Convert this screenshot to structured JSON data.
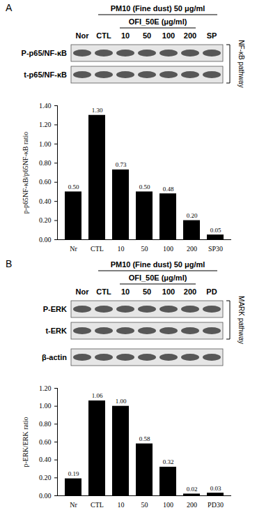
{
  "chart_data": [
    {
      "type": "bar",
      "panel": "A",
      "categories": [
        "Nr",
        "CTL",
        "10",
        "50",
        "100",
        "200",
        "SP30"
      ],
      "values": [
        0.5,
        1.3,
        0.73,
        0.5,
        0.48,
        0.2,
        0.05
      ],
      "value_labels": [
        "0.50",
        "1.30",
        "0.73",
        "0.50",
        "0.48",
        "0.20",
        "0.05"
      ],
      "data_labels": true,
      "color": "#000000",
      "y_label": "p-p65NF-κB/p65NF-κB ratio",
      "ylim": [
        0,
        1.4
      ],
      "yticks": [
        {
          "value": 0,
          "label": "0.00"
        },
        {
          "value": 0.2,
          "label": "0.20"
        },
        {
          "value": 0.4,
          "label": "0.40"
        },
        {
          "value": 0.6,
          "label": "0.60"
        },
        {
          "value": 0.8,
          "label": "0.80"
        },
        {
          "value": 1.0,
          "label": "1.00"
        },
        {
          "value": 1.2,
          "label": "1.20"
        },
        {
          "value": 1.4,
          "label": "1.40"
        }
      ],
      "grid": false,
      "blot": {
        "treatment": "PM10 (Fine dust) 50 μg/ml",
        "extract": "OFI_50E (μg/ml)",
        "lanes": [
          "Nor",
          "CTL",
          "10",
          "50",
          "100",
          "200",
          "SP"
        ],
        "pathway_rows": [
          "P-p65/NF-κB",
          "t-p65/NF-κB"
        ],
        "other_rows": [],
        "pathway": "NF-κB pathway"
      }
    },
    {
      "type": "bar",
      "panel": "B",
      "categories": [
        "Nr",
        "CTL",
        "10",
        "50",
        "100",
        "200",
        "PD30"
      ],
      "values": [
        0.19,
        1.06,
        1.0,
        0.58,
        0.32,
        0.02,
        0.03
      ],
      "value_labels": [
        "0.19",
        "1.06",
        "1.00",
        "0.58",
        "0.32",
        "0.02",
        "0.03"
      ],
      "data_labels": true,
      "color": "#000000",
      "y_label": "p-ERK/ERK ratio",
      "ylim": [
        0,
        1.2
      ],
      "yticks": [
        {
          "value": 0,
          "label": "0.00"
        },
        {
          "value": 0.2,
          "label": "0.20"
        },
        {
          "value": 0.4,
          "label": "0.40"
        },
        {
          "value": 0.6,
          "label": "0.60"
        },
        {
          "value": 0.8,
          "label": "0.80"
        },
        {
          "value": 1.0,
          "label": "1.00"
        },
        {
          "value": 1.2,
          "label": "1.20"
        }
      ],
      "grid": false,
      "blot": {
        "treatment": "PM10 (Fine dust) 50 μg/ml",
        "extract": "OFI_50E (μg/ml)",
        "lanes": [
          "Nor",
          "CTL",
          "10",
          "50",
          "100",
          "200",
          "PD"
        ],
        "pathway_rows": [
          "P-ERK",
          "t-ERK"
        ],
        "other_rows": [
          "β-actin"
        ],
        "pathway": "MARK pathway"
      }
    }
  ]
}
